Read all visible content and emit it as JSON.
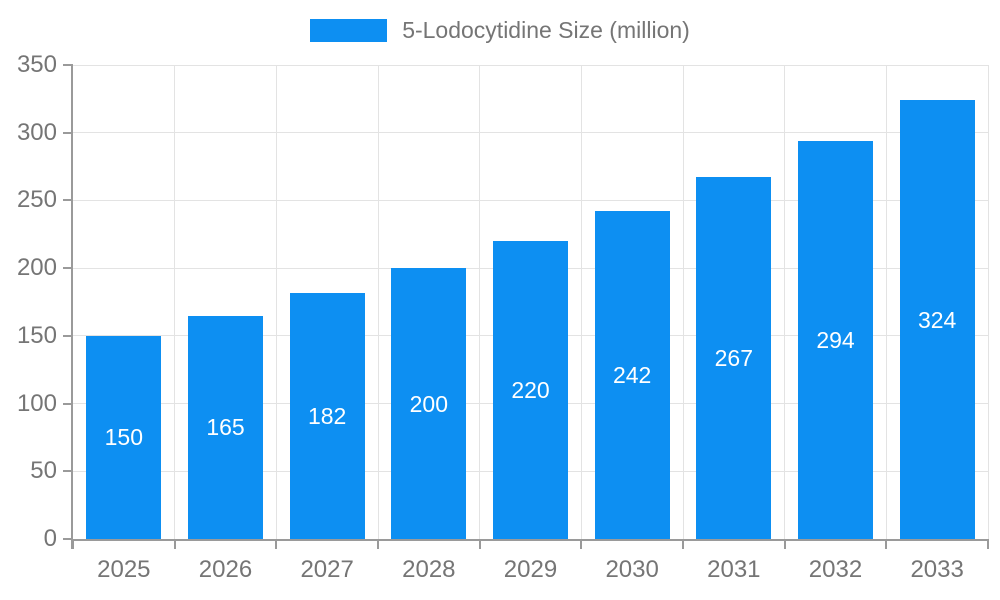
{
  "legend": {
    "label": "5-Lodocytidine Size (million)"
  },
  "colors": {
    "bar": "#0d8ff2",
    "grid": "#e3e3e3",
    "axis": "#9a9a9a",
    "text": "#757575",
    "bar_label": "#ffffff",
    "background": "#ffffff"
  },
  "chart_data": {
    "type": "bar",
    "categories": [
      "2025",
      "2026",
      "2027",
      "2028",
      "2029",
      "2030",
      "2031",
      "2032",
      "2033"
    ],
    "values": [
      150,
      165,
      182,
      200,
      220,
      242,
      267,
      294,
      324
    ],
    "title": "5-Lodocytidine Size (million)",
    "xlabel": "",
    "ylabel": "",
    "ylim": [
      0,
      350
    ],
    "ytick_step": 50,
    "grid": true,
    "legend_position": "top",
    "value_labels": "inside-center"
  }
}
